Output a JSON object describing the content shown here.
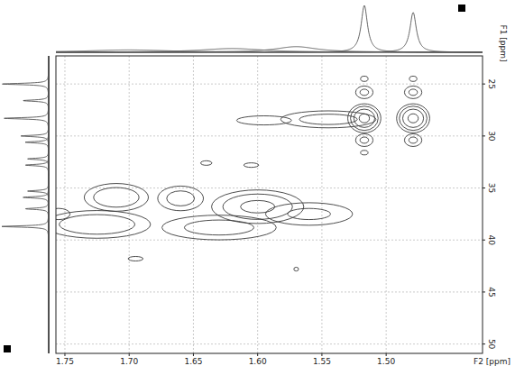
{
  "chart_data": {
    "type": "contour",
    "x_label": "F2 [ppm]",
    "y_label": "F1 [ppm]",
    "xlim": [
      1.757,
      1.425
    ],
    "ylim": [
      22.3,
      50.9
    ],
    "xticks": [
      1.75,
      {
        "value": 1.7,
        "label": "1.70"
      },
      1.65,
      {
        "value": 1.6,
        "label": "1.60"
      },
      1.55,
      {
        "value": 1.5,
        "label": "1.50"
      }
    ],
    "yticks": [
      25,
      30,
      35,
      40,
      45,
      50
    ],
    "grid": true,
    "color": "#3a3a3a",
    "levels": [
      1,
      2,
      4,
      8
    ],
    "peaks": [
      {
        "x": 1.517,
        "y": 28.3,
        "width_x": 0.006,
        "width_y": 0.65,
        "height": 10
      },
      {
        "x": 1.479,
        "y": 28.3,
        "width_x": 0.006,
        "width_y": 0.65,
        "height": 10
      },
      {
        "x": 1.545,
        "y": 28.4,
        "width_x": 0.025,
        "width_y": 0.55,
        "height": 3
      },
      {
        "x": 1.595,
        "y": 28.5,
        "width_x": 0.022,
        "width_y": 0.45,
        "height": 1.6
      },
      {
        "x": 1.517,
        "y": 25.8,
        "width_x": 0.005,
        "width_y": 0.45,
        "height": 2.5
      },
      {
        "x": 1.479,
        "y": 25.8,
        "width_x": 0.005,
        "width_y": 0.45,
        "height": 2.5
      },
      {
        "x": 1.517,
        "y": 24.5,
        "width_x": 0.004,
        "width_y": 0.35,
        "height": 1.3
      },
      {
        "x": 1.479,
        "y": 24.5,
        "width_x": 0.004,
        "width_y": 0.35,
        "height": 1.3
      },
      {
        "x": 1.517,
        "y": 30.4,
        "width_x": 0.005,
        "width_y": 0.45,
        "height": 2.5
      },
      {
        "x": 1.479,
        "y": 30.4,
        "width_x": 0.005,
        "width_y": 0.45,
        "height": 2.5
      },
      {
        "x": 1.517,
        "y": 31.6,
        "width_x": 0.004,
        "width_y": 0.3,
        "height": 1.3
      },
      {
        "x": 1.71,
        "y": 35.9,
        "width_x": 0.015,
        "width_y": 0.8,
        "height": 4
      },
      {
        "x": 1.66,
        "y": 36.0,
        "width_x": 0.012,
        "width_y": 0.8,
        "height": 3
      },
      {
        "x": 1.6,
        "y": 36.8,
        "width_x": 0.02,
        "width_y": 0.9,
        "height": 5
      },
      {
        "x": 1.725,
        "y": 38.5,
        "width_x": 0.025,
        "width_y": 0.8,
        "height": 4
      },
      {
        "x": 1.63,
        "y": 38.8,
        "width_x": 0.03,
        "width_y": 0.8,
        "height": 3
      },
      {
        "x": 1.56,
        "y": 37.5,
        "width_x": 0.025,
        "width_y": 0.8,
        "height": 2.5
      },
      {
        "x": 1.755,
        "y": 37.5,
        "width_x": 0.01,
        "width_y": 0.6,
        "height": 1.5
      },
      {
        "x": 1.695,
        "y": 41.8,
        "width_x": 0.008,
        "width_y": 0.3,
        "height": 1.3
      },
      {
        "x": 1.64,
        "y": 32.6,
        "width_x": 0.006,
        "width_y": 0.3,
        "height": 1.3
      },
      {
        "x": 1.605,
        "y": 32.8,
        "width_x": 0.008,
        "width_y": 0.3,
        "height": 1.3
      },
      {
        "x": 1.57,
        "y": 42.8,
        "width_x": 0.003,
        "width_y": 0.3,
        "height": 1.2
      }
    ],
    "f2_projection": {
      "x": [
        1.517,
        1.479,
        1.57,
        1.62,
        1.7
      ],
      "values": [
        1.0,
        0.85,
        0.12,
        0.08,
        0.05
      ],
      "widths": [
        0.003,
        0.003,
        0.02,
        0.03,
        0.04
      ]
    },
    "f1_projection": {
      "y": [
        25.0,
        26.6,
        28.3,
        30.0,
        30.6,
        32.2,
        32.8,
        35.3,
        35.9,
        37.0,
        38.7
      ],
      "values": [
        1.0,
        0.55,
        0.95,
        0.6,
        0.5,
        0.45,
        0.5,
        0.45,
        0.55,
        0.5,
        1.0
      ],
      "widths": [
        0.08,
        0.08,
        0.08,
        0.08,
        0.08,
        0.08,
        0.08,
        0.08,
        0.08,
        0.08,
        0.08
      ]
    }
  }
}
